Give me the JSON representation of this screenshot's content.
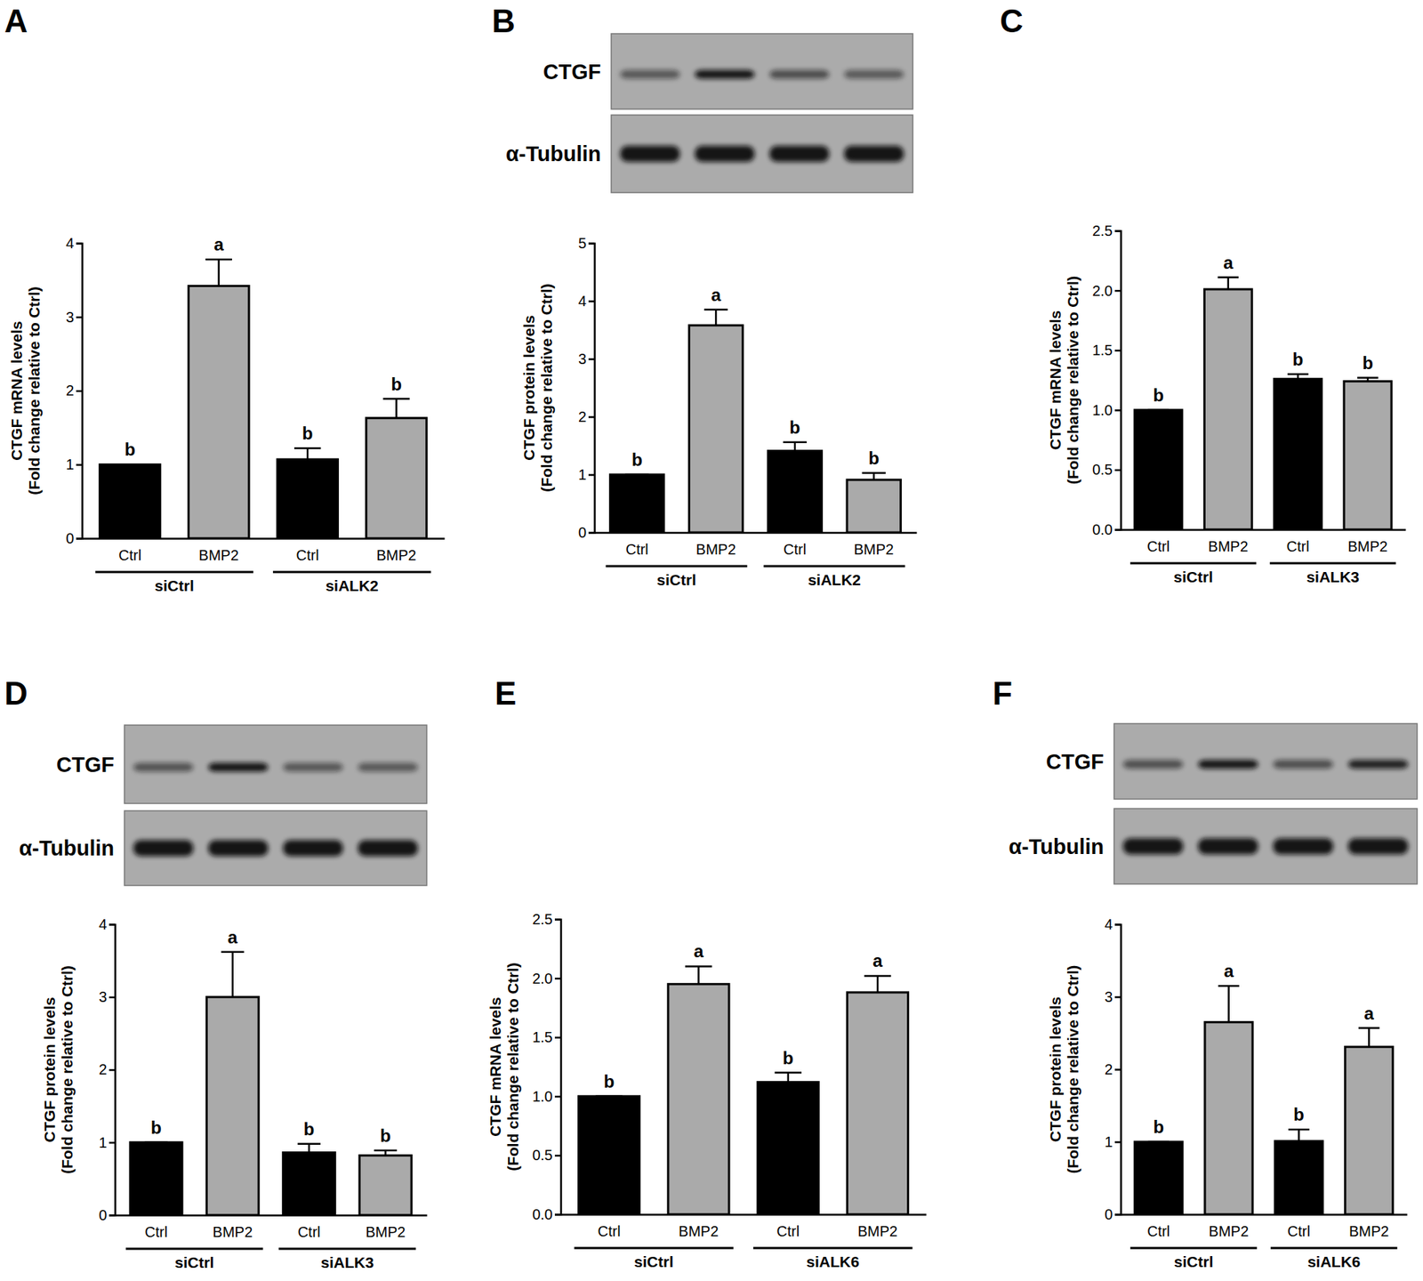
{
  "chart_data": [
    {
      "type": "bar",
      "panel": "A",
      "ylabel": [
        "CTGF mRNA levels",
        "(Fold change relative to Ctrl)"
      ],
      "categories": [
        "Ctrl",
        "BMP2",
        "Ctrl",
        "BMP2"
      ],
      "groups": [
        "siCtrl",
        "siALK2"
      ],
      "values": [
        1,
        3.42,
        1.07,
        1.63
      ],
      "errors": [
        0,
        0.36,
        0.15,
        0.26
      ],
      "annotations": [
        "b",
        "a",
        "b",
        "b"
      ],
      "colors": [
        "#000000",
        "#aaaaaa",
        "#000000",
        "#aaaaaa"
      ],
      "ylim": [
        0,
        4
      ],
      "yticks": [
        0,
        1,
        2,
        3,
        4
      ]
    },
    {
      "type": "bar",
      "panel": "B",
      "ylabel": [
        "CTGF protein levels",
        "(Fold change relative to Ctrl)"
      ],
      "blot": {
        "labels": [
          "CTGF",
          "α-Tubulin"
        ]
      },
      "categories": [
        "Ctrl",
        "BMP2",
        "Ctrl",
        "BMP2"
      ],
      "groups": [
        "siCtrl",
        "siALK2"
      ],
      "values": [
        1,
        3.58,
        1.41,
        0.91
      ],
      "errors": [
        0,
        0.27,
        0.15,
        0.12
      ],
      "annotations": [
        "b",
        "a",
        "b",
        "b"
      ],
      "colors": [
        "#000000",
        "#aaaaaa",
        "#000000",
        "#aaaaaa"
      ],
      "ylim": [
        0,
        5
      ],
      "yticks": [
        0,
        1,
        2,
        3,
        4,
        5
      ]
    },
    {
      "type": "bar",
      "panel": "C",
      "ylabel": [
        "CTGF mRNA levels",
        "(Fold change relative to Ctrl)"
      ],
      "categories": [
        "Ctrl",
        "BMP2",
        "Ctrl",
        "BMP2"
      ],
      "groups": [
        "siCtrl",
        "siALK3"
      ],
      "values": [
        1,
        2.01,
        1.26,
        1.24
      ],
      "errors": [
        0,
        0.1,
        0.04,
        0.03
      ],
      "annotations": [
        "b",
        "a",
        "b",
        "b"
      ],
      "colors": [
        "#000000",
        "#aaaaaa",
        "#000000",
        "#aaaaaa"
      ],
      "ylim": [
        0,
        2.5
      ],
      "yticks": [
        {
          "value": 0,
          "label": "0.0"
        },
        0.5,
        {
          "value": 1,
          "label": "1.0"
        },
        1.5,
        {
          "value": 2,
          "label": "2.0"
        },
        2.5
      ]
    },
    {
      "type": "bar",
      "panel": "D",
      "ylabel": [
        "CTGF protein levels",
        "(Fold change relative to Ctrl)"
      ],
      "blot": {
        "labels": [
          "CTGF",
          "α-Tubulin"
        ]
      },
      "categories": [
        "Ctrl",
        "BMP2",
        "Ctrl",
        "BMP2"
      ],
      "groups": [
        "siCtrl",
        "siALK3"
      ],
      "values": [
        1,
        3.0,
        0.86,
        0.82
      ],
      "errors": [
        0,
        0.62,
        0.12,
        0.07
      ],
      "annotations": [
        "b",
        "a",
        "b",
        "b"
      ],
      "colors": [
        "#000000",
        "#aaaaaa",
        "#000000",
        "#aaaaaa"
      ],
      "ylim": [
        0,
        4
      ],
      "yticks": [
        0,
        1,
        2,
        3,
        4
      ]
    },
    {
      "type": "bar",
      "panel": "E",
      "ylabel": [
        "CTGF mRNA levels",
        "(Fold change relative to Ctrl)"
      ],
      "categories": [
        "Ctrl",
        "BMP2",
        "Ctrl",
        "BMP2"
      ],
      "groups": [
        "siCtrl",
        "siALK6"
      ],
      "values": [
        1,
        1.95,
        1.12,
        1.88
      ],
      "errors": [
        0,
        0.15,
        0.08,
        0.14
      ],
      "annotations": [
        "b",
        "a",
        "b",
        "a"
      ],
      "colors": [
        "#000000",
        "#aaaaaa",
        "#000000",
        "#aaaaaa"
      ],
      "ylim": [
        0,
        2.5
      ],
      "yticks": [
        {
          "value": 0,
          "label": "0.0"
        },
        0.5,
        {
          "value": 1,
          "label": "1.0"
        },
        1.5,
        {
          "value": 2,
          "label": "2.0"
        },
        2.5
      ]
    },
    {
      "type": "bar",
      "panel": "F",
      "ylabel": [
        "CTGF protein levels",
        "(Fold change relative to Ctrl)"
      ],
      "blot": {
        "labels": [
          "CTGF",
          "α-Tubulin"
        ]
      },
      "categories": [
        "Ctrl",
        "BMP2",
        "Ctrl",
        "BMP2"
      ],
      "groups": [
        "siCtrl",
        "siALK6"
      ],
      "values": [
        1,
        2.65,
        1.01,
        2.31
      ],
      "errors": [
        0,
        0.5,
        0.16,
        0.26
      ],
      "annotations": [
        "b",
        "a",
        "b",
        "a"
      ],
      "colors": [
        "#000000",
        "#aaaaaa",
        "#000000",
        "#aaaaaa"
      ],
      "ylim": [
        0,
        4
      ],
      "yticks": [
        0,
        1,
        2,
        3,
        4
      ]
    }
  ]
}
